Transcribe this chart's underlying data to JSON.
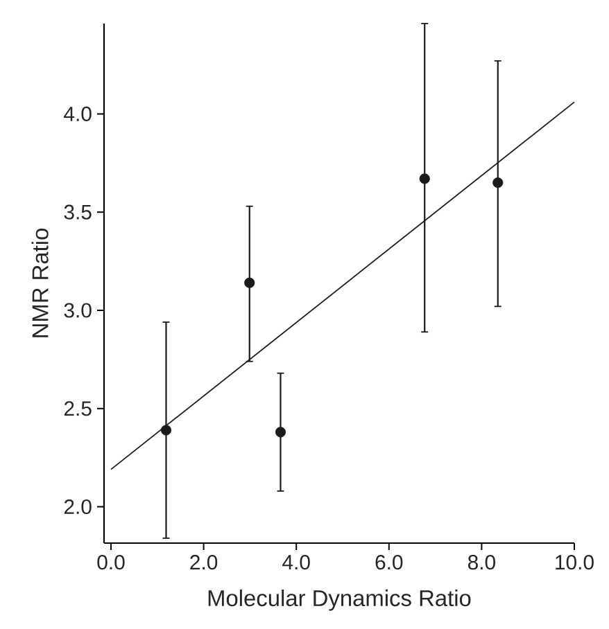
{
  "chart_data": {
    "type": "scatter",
    "xlabel": "Molecular Dynamics Ratio",
    "ylabel": "NMR Ratio",
    "xlim": [
      -0.15,
      10
    ],
    "ylim": [
      1.815,
      4.46
    ],
    "xticks": [
      {
        "value": 0,
        "label": "0.0"
      },
      {
        "value": 2,
        "label": "2.0"
      },
      {
        "value": 4,
        "label": "4.0"
      },
      {
        "value": 6,
        "label": "6.0"
      },
      {
        "value": 8,
        "label": "8.0"
      },
      {
        "value": 10,
        "label": "10.0"
      }
    ],
    "yticks": [
      {
        "value": 2,
        "label": "2.0"
      },
      {
        "value": 2.5,
        "label": "2.5"
      },
      {
        "value": 3,
        "label": "3.0"
      },
      {
        "value": 3.5,
        "label": "3.5"
      },
      {
        "value": 4,
        "label": "4.0"
      }
    ],
    "grid": false,
    "series": [
      {
        "color": "#1a1a1a",
        "marker": "circle",
        "x": [
          1.19,
          2.99,
          3.66,
          6.77,
          8.35
        ],
        "values": [
          2.39,
          3.14,
          2.38,
          3.67,
          3.65
        ],
        "errors": [
          [
            1.84,
            2.94
          ],
          [
            2.74,
            3.53
          ],
          [
            2.08,
            2.68
          ],
          [
            2.89,
            4.46
          ],
          [
            3.02,
            4.27
          ]
        ]
      },
      {
        "type": "line",
        "color": "#1a1a1a",
        "marker": "none",
        "line_style": "solid",
        "x": [
          0,
          10
        ],
        "values": [
          2.19,
          4.06
        ]
      }
    ]
  }
}
